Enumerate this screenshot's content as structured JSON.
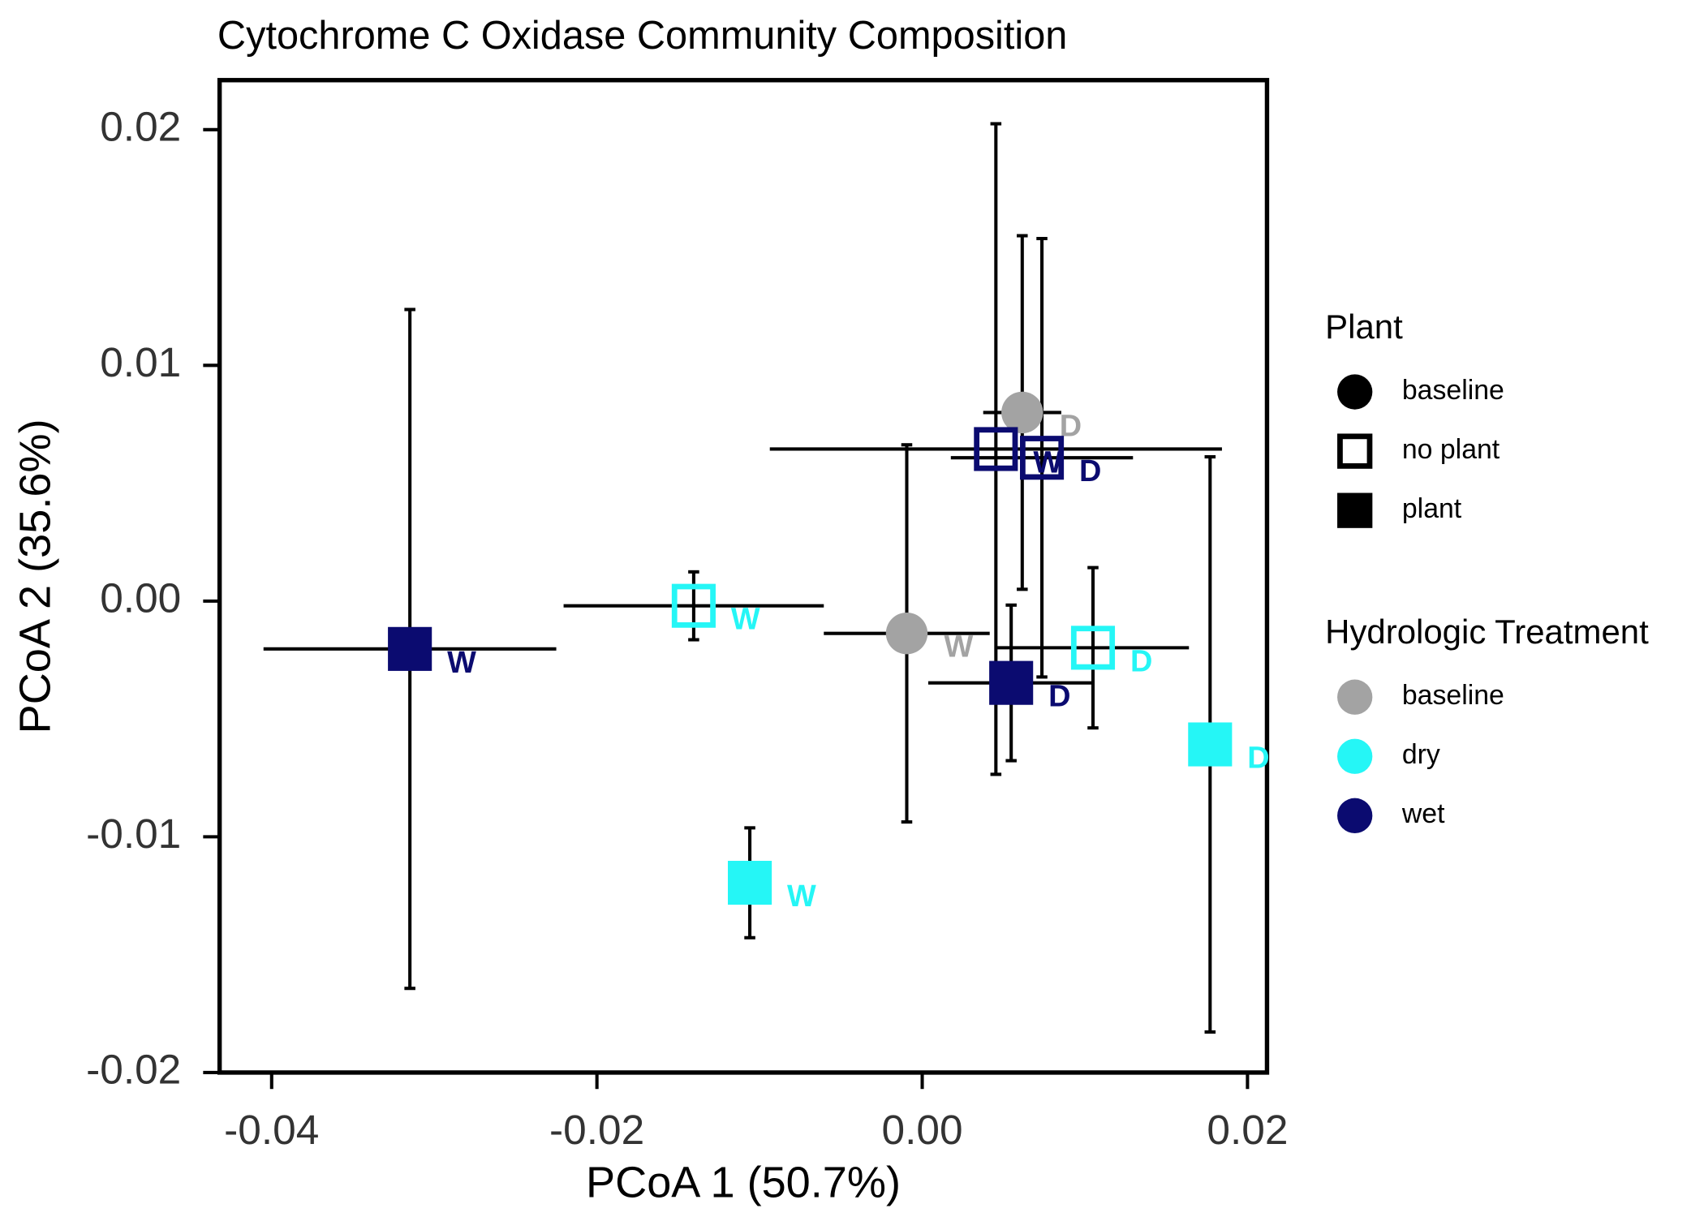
{
  "chart_data": {
    "type": "scatter",
    "title": "Cytochrome C Oxidase Community Composition",
    "xlabel": "PCoA 1 (50.7%)",
    "ylabel": "PCoA 2 (35.6%)",
    "xlim": [
      -0.0432,
      0.0212
    ],
    "ylim": [
      -0.02,
      0.0221
    ],
    "xticks": [
      -0.04,
      -0.02,
      {
        "value": 0,
        "label": "0.00"
      },
      0.02
    ],
    "yticks": [
      -0.02,
      -0.01,
      {
        "value": 0,
        "label": "0.00"
      },
      0.01,
      0.02
    ],
    "points": {
      "x": [
        -0.0315,
        -0.01405,
        -0.0106,
        -0.00095,
        0.00615,
        0.00453,
        0.00736,
        0.00547,
        0.0105,
        0.0177
      ],
      "y": [
        -0.00203,
        -0.0002,
        -0.01195,
        -0.00137,
        0.008,
        0.00645,
        0.00608,
        -0.00347,
        -0.00198,
        -0.00608
      ],
      "xerr": [
        0.009,
        0.008,
        0.00115,
        0.0051,
        0.0024,
        0.0139,
        0.0056,
        0.0051,
        0.0059,
        0
      ],
      "yerr": [
        0.0144,
        0.00144,
        0.00233,
        0.008,
        0.0075,
        0.0138,
        0.0093,
        0.0033,
        0.0034,
        0.0122
      ],
      "labels": [
        "W",
        "W",
        "W",
        "W",
        "D",
        "W",
        "D",
        "D",
        "D",
        "D"
      ],
      "shape": [
        "filled-square",
        "open-square",
        "filled-square",
        "circle",
        "circle",
        "open-square",
        "open-square",
        "filled-square",
        "open-square",
        "filled-square"
      ],
      "color": [
        "#0b0b70",
        "#25f6f6",
        "#25f6f6",
        "#a3a3a3",
        "#a3a3a3",
        "#0b0b70",
        "#0b0b70",
        "#0b0b70",
        "#25f6f6",
        "#25f6f6"
      ]
    },
    "legends": [
      {
        "title": "Plant",
        "entries": [
          {
            "label": "baseline",
            "shape": "circle",
            "color": "#000000"
          },
          {
            "label": "no plant",
            "shape": "open-square",
            "color": "#000000"
          },
          {
            "label": "plant",
            "shape": "filled-square",
            "color": "#000000"
          }
        ]
      },
      {
        "title": "Hydrologic Treatment",
        "entries": [
          {
            "label": "baseline",
            "shape": "circle",
            "color": "#a3a3a3"
          },
          {
            "label": "dry",
            "shape": "circle",
            "color": "#25f6f6"
          },
          {
            "label": "wet",
            "shape": "circle",
            "color": "#0b0b70"
          }
        ]
      }
    ]
  }
}
